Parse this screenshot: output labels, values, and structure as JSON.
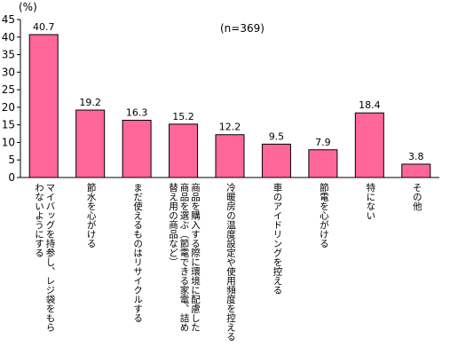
{
  "chart_data": {
    "type": "bar",
    "unit": "(%)",
    "note": "(n=369)",
    "categories": [
      "マイバッグを持参し、レジ袋をもらわないようにする",
      "節水を心がける",
      "まだ使えるものはリサイクルする",
      "商品を購入する際に環境に配慮した商品を選ぶ（節電できる家電、詰め替え用の商品など）",
      "冷暖房の温度設定や使用頻度を控える",
      "車のアイドリングを控える",
      "節電を心がける",
      "特にない",
      "その他"
    ],
    "category_lines": [
      [
        "マイバッグを持参し、レジ袋をもら",
        "わないようにする"
      ],
      [
        "節水を心がける"
      ],
      [
        "まだ使えるものはリサイクルする"
      ],
      [
        "商品を購入する際に環境に配慮した",
        "商品を選ぶ（節電できる家電、詰め",
        "替え用の商品など）"
      ],
      [
        "冷暖房の温度設定や使用頻度を控える"
      ],
      [
        "車のアイドリングを控える"
      ],
      [
        "節電を心がける"
      ],
      [
        "特にない"
      ],
      [
        "その他"
      ]
    ],
    "values": [
      40.7,
      19.2,
      16.3,
      15.2,
      12.2,
      9.5,
      7.9,
      18.4,
      3.8
    ],
    "value_labels": [
      "40.7",
      "19.2",
      "16.3",
      "15.2",
      "12.2",
      "9.5",
      "7.9",
      "18.4",
      "3.8"
    ],
    "ylim": [
      0,
      45
    ],
    "yticks": [
      0,
      5,
      10,
      15,
      20,
      25,
      30,
      35,
      40,
      45
    ],
    "bar_color": "#ff6699",
    "bar_stroke": "#000000",
    "grid": false
  }
}
